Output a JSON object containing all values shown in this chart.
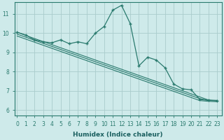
{
  "title": "",
  "xlabel": "Humidex (Indice chaleur)",
  "ylabel": "",
  "background_color": "#ceeaea",
  "grid_color": "#aacccc",
  "line_color": "#2a7a6e",
  "x_ticks": [
    0,
    1,
    2,
    3,
    4,
    5,
    6,
    7,
    8,
    9,
    10,
    11,
    12,
    13,
    14,
    15,
    16,
    17,
    18,
    19,
    20,
    21,
    22,
    23
  ],
  "y_ticks": [
    6,
    7,
    8,
    9,
    10,
    11
  ],
  "ylim": [
    5.7,
    11.6
  ],
  "xlim": [
    -0.3,
    23.5
  ],
  "line1_x": [
    0,
    1,
    2,
    3,
    4,
    5,
    6,
    7,
    8,
    9,
    10,
    11,
    12,
    13,
    14,
    15,
    16,
    17,
    18,
    19,
    20,
    21,
    22,
    23
  ],
  "line1_y": [
    10.05,
    9.88,
    9.72,
    9.56,
    9.4,
    9.24,
    9.08,
    8.92,
    8.76,
    8.6,
    8.44,
    8.28,
    8.12,
    7.96,
    7.8,
    7.64,
    7.48,
    7.32,
    7.16,
    7.0,
    6.84,
    6.68,
    6.52,
    6.5
  ],
  "line2_x": [
    0,
    1,
    2,
    3,
    4,
    5,
    6,
    7,
    8,
    9,
    10,
    11,
    12,
    13,
    14,
    15,
    16,
    17,
    18,
    19,
    20,
    21,
    22,
    23
  ],
  "line2_y": [
    9.95,
    9.79,
    9.63,
    9.47,
    9.31,
    9.15,
    8.99,
    8.83,
    8.67,
    8.51,
    8.35,
    8.19,
    8.03,
    7.87,
    7.71,
    7.55,
    7.39,
    7.23,
    7.07,
    6.91,
    6.75,
    6.59,
    6.5,
    6.48
  ],
  "line3_x": [
    0,
    1,
    2,
    3,
    4,
    5,
    6,
    7,
    8,
    9,
    10,
    11,
    12,
    13,
    14,
    15,
    16,
    17,
    18,
    19,
    20,
    21,
    22,
    23
  ],
  "line3_y": [
    9.85,
    9.69,
    9.53,
    9.37,
    9.21,
    9.05,
    8.89,
    8.73,
    8.57,
    8.41,
    8.25,
    8.09,
    7.93,
    7.77,
    7.61,
    7.45,
    7.29,
    7.13,
    6.97,
    6.81,
    6.65,
    6.49,
    6.45,
    6.43
  ],
  "scatter_x": [
    0,
    1,
    2,
    3,
    4,
    5,
    6,
    7,
    8,
    9,
    10,
    11,
    12,
    13,
    14,
    15,
    16,
    17,
    18,
    19,
    20,
    21,
    22,
    23
  ],
  "scatter_y": [
    10.05,
    9.9,
    9.65,
    9.55,
    9.5,
    9.65,
    9.45,
    9.55,
    9.45,
    10.0,
    10.35,
    11.2,
    11.45,
    10.5,
    8.3,
    8.75,
    8.6,
    8.2,
    7.35,
    7.1,
    7.05,
    6.55,
    6.5,
    6.48
  ]
}
